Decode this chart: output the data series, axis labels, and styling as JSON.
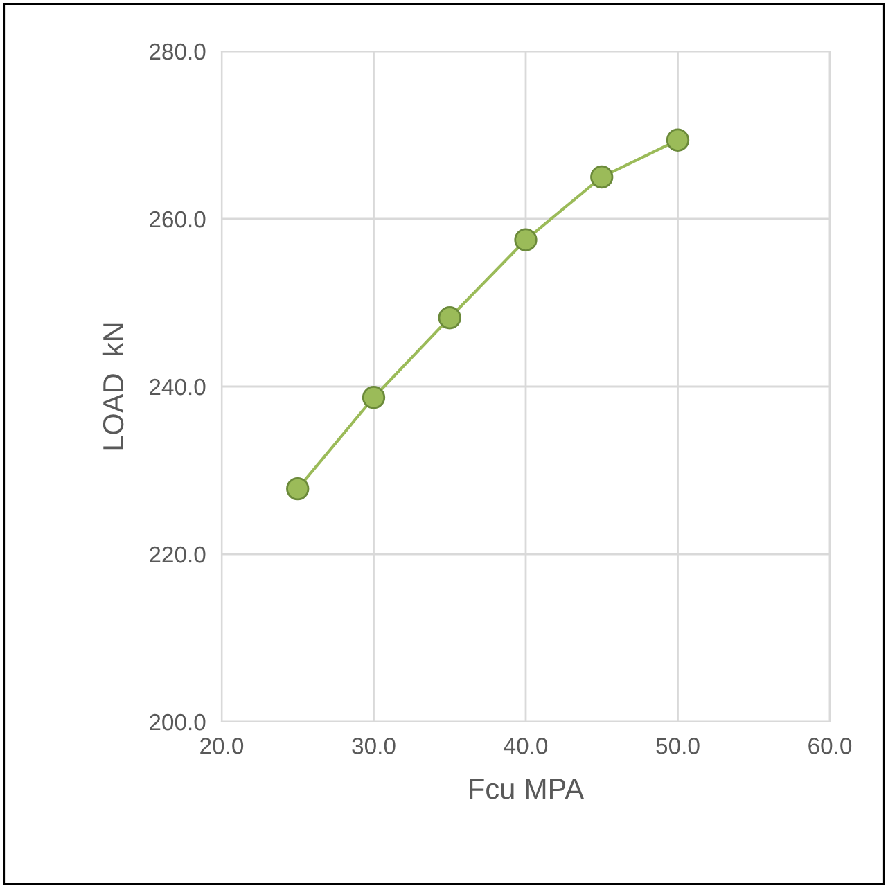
{
  "chart_data": {
    "type": "line",
    "xlabel": "Fcu MPA",
    "ylabel": "LOAD  kN",
    "series": [
      {
        "color": "#9bbb59",
        "x": [
          25,
          30,
          35,
          40,
          45,
          50
        ],
        "values": [
          227.8,
          238.7,
          248.2,
          257.5,
          265.0,
          269.4
        ]
      }
    ],
    "marker": "circle",
    "line_style": "solid",
    "grid": true,
    "xlim": [
      20,
      60
    ],
    "ylim": [
      200,
      280
    ],
    "xticks": [
      {
        "value": 20,
        "label": "20.0"
      },
      {
        "value": 30,
        "label": "30.0"
      },
      {
        "value": 40,
        "label": "40.0"
      },
      {
        "value": 50,
        "label": "50.0"
      },
      {
        "value": 60,
        "label": "60.0"
      }
    ],
    "yticks": [
      {
        "value": 200,
        "label": "200.0"
      },
      {
        "value": 220,
        "label": "220.0"
      },
      {
        "value": 240,
        "label": "240.0"
      },
      {
        "value": 260,
        "label": "260.0"
      },
      {
        "value": 280,
        "label": "280.0"
      }
    ]
  }
}
